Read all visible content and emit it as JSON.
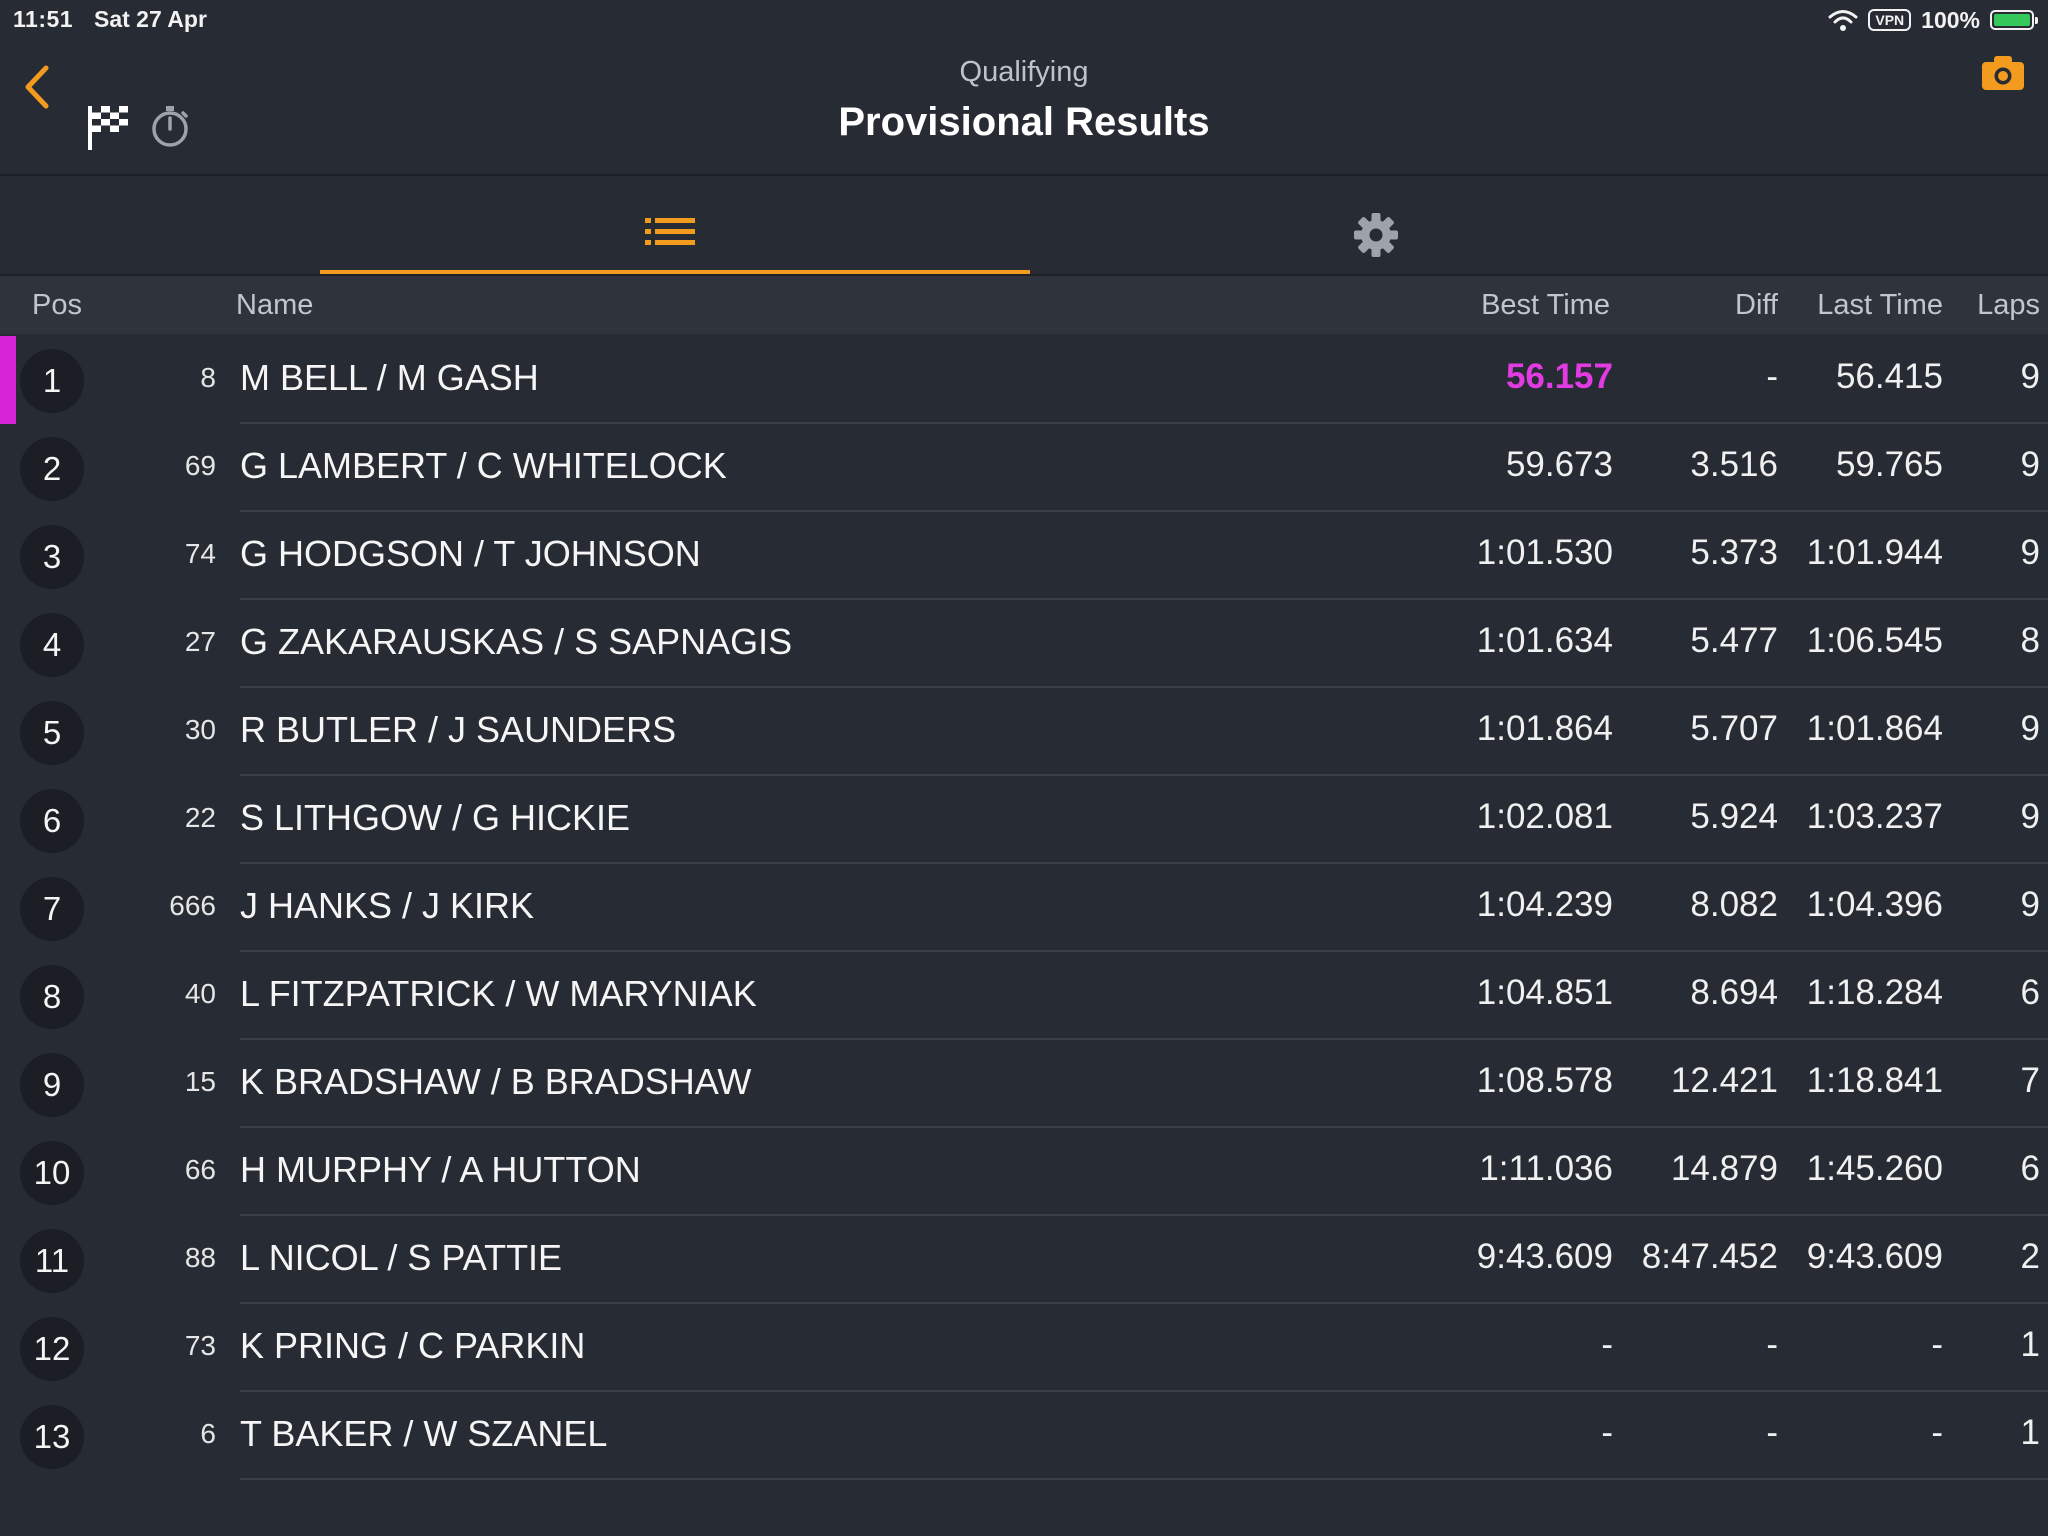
{
  "status": {
    "time": "11:51",
    "date": "Sat 27 Apr",
    "vpn": "VPN",
    "battery": "100%"
  },
  "header": {
    "subtitle": "Qualifying",
    "title": "Provisional Results"
  },
  "columns": {
    "pos": "Pos",
    "name": "Name",
    "best": "Best Time",
    "diff": "Diff",
    "last": "Last Time",
    "laps": "Laps"
  },
  "colors": {
    "accent": "#f39b1f",
    "fastest": "#e23be2",
    "background": "#272b33"
  },
  "rows": [
    {
      "pos": "1",
      "num": "8",
      "name": "M BELL / M GASH",
      "best": "56.157",
      "diff": "-",
      "last": "56.415",
      "laps": "9"
    },
    {
      "pos": "2",
      "num": "69",
      "name": "G LAMBERT / C WHITELOCK",
      "best": "59.673",
      "diff": "3.516",
      "last": "59.765",
      "laps": "9"
    },
    {
      "pos": "3",
      "num": "74",
      "name": "G HODGSON / T JOHNSON",
      "best": "1:01.530",
      "diff": "5.373",
      "last": "1:01.944",
      "laps": "9"
    },
    {
      "pos": "4",
      "num": "27",
      "name": "G ZAKARAUSKAS / S SAPNAGIS",
      "best": "1:01.634",
      "diff": "5.477",
      "last": "1:06.545",
      "laps": "8"
    },
    {
      "pos": "5",
      "num": "30",
      "name": "R BUTLER / J SAUNDERS",
      "best": "1:01.864",
      "diff": "5.707",
      "last": "1:01.864",
      "laps": "9"
    },
    {
      "pos": "6",
      "num": "22",
      "name": "S LITHGOW / G HICKIE",
      "best": "1:02.081",
      "diff": "5.924",
      "last": "1:03.237",
      "laps": "9"
    },
    {
      "pos": "7",
      "num": "666",
      "name": "J HANKS / J KIRK",
      "best": "1:04.239",
      "diff": "8.082",
      "last": "1:04.396",
      "laps": "9"
    },
    {
      "pos": "8",
      "num": "40",
      "name": "L FITZPATRICK / W MARYNIAK",
      "best": "1:04.851",
      "diff": "8.694",
      "last": "1:18.284",
      "laps": "6"
    },
    {
      "pos": "9",
      "num": "15",
      "name": "K BRADSHAW / B BRADSHAW",
      "best": "1:08.578",
      "diff": "12.421",
      "last": "1:18.841",
      "laps": "7"
    },
    {
      "pos": "10",
      "num": "66",
      "name": "H MURPHY / A HUTTON",
      "best": "1:11.036",
      "diff": "14.879",
      "last": "1:45.260",
      "laps": "6"
    },
    {
      "pos": "11",
      "num": "88",
      "name": "L NICOL / S PATTIE",
      "best": "9:43.609",
      "diff": "8:47.452",
      "last": "9:43.609",
      "laps": "2"
    },
    {
      "pos": "12",
      "num": "73",
      "name": "K PRING / C PARKIN",
      "best": "-",
      "diff": "-",
      "last": "-",
      "laps": "1"
    },
    {
      "pos": "13",
      "num": "6",
      "name": "T BAKER / W SZANEL",
      "best": "-",
      "diff": "-",
      "last": "-",
      "laps": "1"
    }
  ]
}
